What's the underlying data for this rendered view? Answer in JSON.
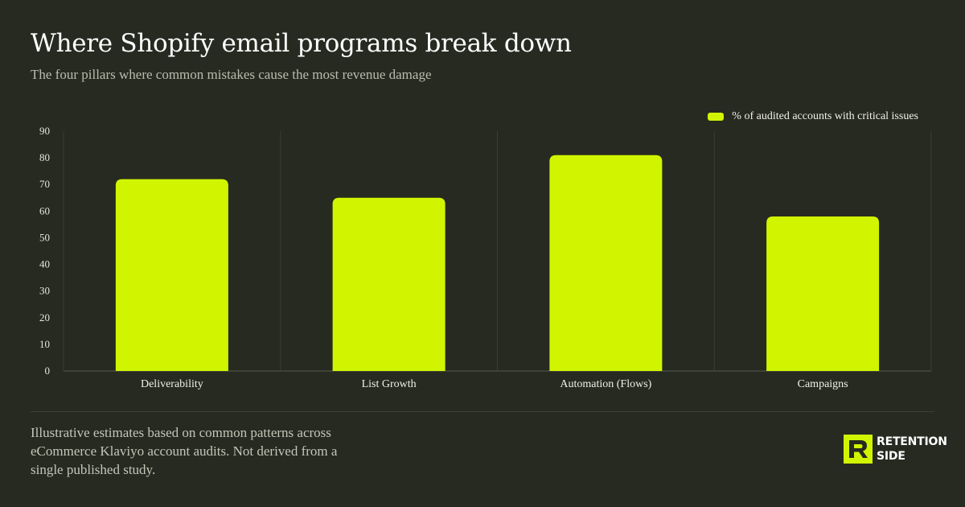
{
  "header": {
    "title": "Where Shopify email programs break down",
    "subtitle": "The four pillars where common mistakes cause the most revenue damage"
  },
  "footer": {
    "note": "Illustrative estimates based on common patterns across eCommerce Klaviyo account audits. Not derived from a single published study.",
    "brand_line1": "RETENTION",
    "brand_line2": "SIDE",
    "brand_icon": "retention-side-logo-icon"
  },
  "colors": {
    "background": "#272a20",
    "accent": "#d1f500",
    "grid": "#3a3d31"
  },
  "chart_data": {
    "type": "bar",
    "title": "Where Shopify email programs break down",
    "subtitle": "The four pillars where common mistakes cause the most revenue damage",
    "categories": [
      "Deliverability",
      "List Growth",
      "Automation (Flows)",
      "Campaigns"
    ],
    "series": [
      {
        "name": "% of audited accounts with critical issues",
        "values": [
          72,
          65,
          81,
          58
        ]
      }
    ],
    "ylim": [
      0,
      90
    ],
    "yticks": [
      0,
      10,
      20,
      30,
      40,
      50,
      60,
      70,
      80,
      90
    ],
    "xlabel": "",
    "ylabel": "",
    "grid": true,
    "legend": "top-right"
  }
}
